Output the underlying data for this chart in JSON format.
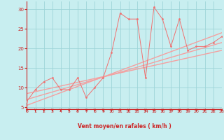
{
  "x_data": [
    0,
    1,
    2,
    3,
    4,
    5,
    6,
    7,
    8,
    9,
    10,
    11,
    12,
    13,
    14,
    15,
    16,
    17,
    18,
    19,
    20,
    21,
    22,
    23
  ],
  "y_scatter": [
    6.5,
    9.5,
    11.5,
    12.5,
    9.5,
    9.5,
    12.5,
    7.5,
    10.0,
    12.5,
    19.0,
    29.0,
    27.5,
    27.5,
    12.5,
    30.5,
    27.5,
    20.5,
    27.5,
    19.5,
    20.5,
    20.5,
    21.5,
    23.0
  ],
  "line1_x": [
    0,
    23
  ],
  "line1_y": [
    5.5,
    24.0
  ],
  "line2_x": [
    0,
    23
  ],
  "line2_y": [
    7.0,
    21.5
  ],
  "line3_x": [
    0,
    23
  ],
  "line3_y": [
    8.5,
    19.5
  ],
  "bg_color": "#c8eef0",
  "line_color": "#f4a0a0",
  "scatter_color": "#f07070",
  "grid_color": "#9ed4d8",
  "axis_color": "#cc2222",
  "ylabel_vals": [
    5,
    10,
    15,
    20,
    25,
    30
  ],
  "xlabel": "Vent moyen/en rafales ( km/h )",
  "xlim": [
    0,
    23
  ],
  "ylim": [
    4.5,
    32
  ]
}
